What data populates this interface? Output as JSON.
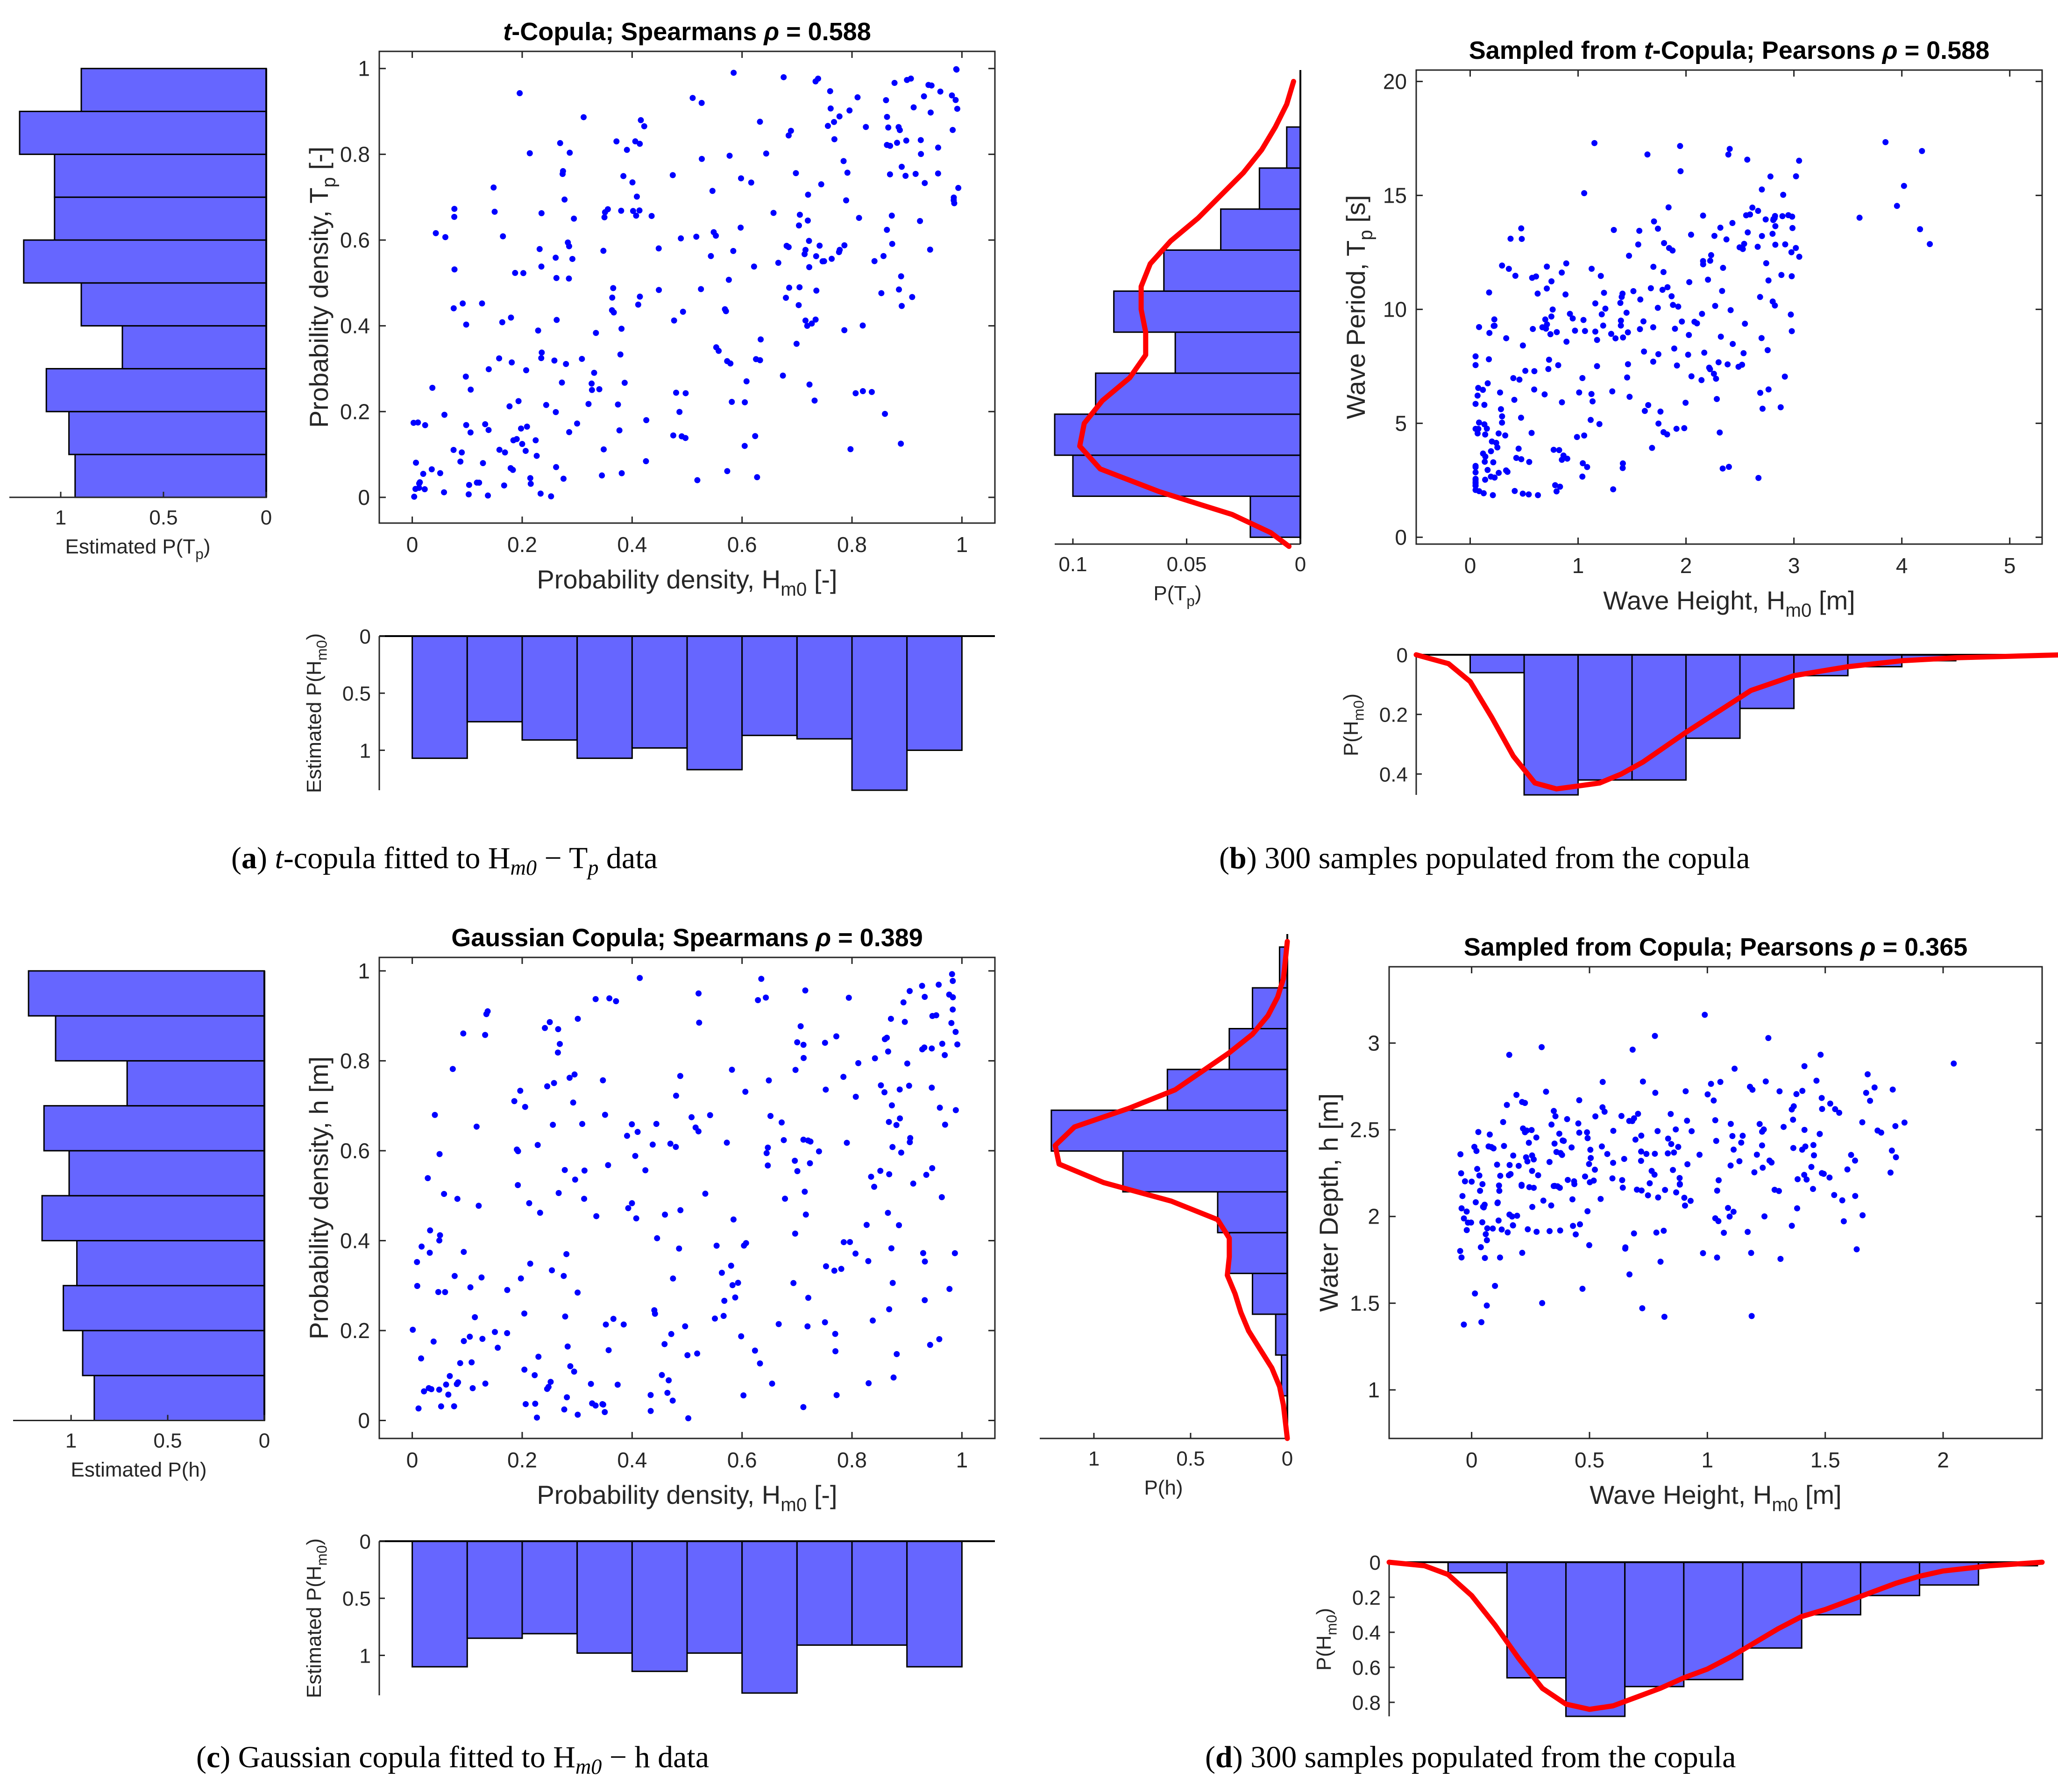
{
  "colors": {
    "bar": "#6666ff",
    "point": "#0000ff",
    "curve": "#ff0000",
    "axis": "#262626"
  },
  "captions": {
    "a": {
      "label": "a",
      "pre": "t",
      "text": "-copula fitted to H",
      "mid": " − T",
      "post": " data",
      "sub1": "m0",
      "sub2": "p"
    },
    "b": {
      "label": "b",
      "text": "300 samples populated from the copula"
    },
    "c": {
      "label": "c",
      "pre": "Gaussian copula fitted to H",
      "sub1": "m0",
      "mid": " − h",
      "post": " data"
    },
    "d": {
      "label": "d",
      "text": "300 samples populated from the copula"
    }
  },
  "chart_data": [
    {
      "id": "a_scatter",
      "type": "scatter",
      "title": "t-Copula; Spearmans ρ = 0.588",
      "xlabel": "Probability density, H_m0 [-]",
      "ylabel": "Probability density, T_p [-]",
      "xlim": [
        -0.06,
        1.06
      ],
      "ylim": [
        -0.06,
        1.04
      ],
      "xticks": [
        0,
        0.2,
        0.4,
        0.6,
        0.8,
        1
      ],
      "yticks": [
        0,
        0.2,
        0.4,
        0.6,
        0.8,
        1
      ],
      "n_points": 300,
      "correlation": 0.588,
      "sample_family": "uniform"
    },
    {
      "id": "a_hist_left",
      "type": "bar",
      "orientation": "horizontal",
      "xlabel": "Estimated P(T_p)",
      "xlim": [
        1.25,
        0
      ],
      "xticks": [
        1,
        0.5,
        0
      ],
      "bin_edges": [
        0,
        0.1,
        0.2,
        0.3,
        0.4,
        0.5,
        0.6,
        0.7,
        0.8,
        0.9,
        1.0
      ],
      "values": [
        0.93,
        0.96,
        1.07,
        0.7,
        0.9,
        1.18,
        1.03,
        1.03,
        1.2,
        0.9
      ]
    },
    {
      "id": "a_hist_bottom",
      "type": "bar",
      "ylabel": "Estimated P(H_m0)",
      "ylim": [
        0,
        1.35
      ],
      "yticks": [
        0,
        0.5,
        1
      ],
      "bin_edges": [
        0,
        0.1,
        0.2,
        0.3,
        0.4,
        0.5,
        0.6,
        0.7,
        0.8,
        0.9,
        1.0
      ],
      "values": [
        1.07,
        0.75,
        0.91,
        1.07,
        0.98,
        1.17,
        0.87,
        0.9,
        1.35,
        1.0
      ]
    },
    {
      "id": "b_scatter",
      "type": "scatter",
      "title": "Sampled from t-Copula; Pearsons ρ = 0.588",
      "xlabel": "Wave Height, H_m0 [m]",
      "ylabel": "Wave Period, T_p [s]",
      "xlim": [
        -0.5,
        5.3
      ],
      "ylim": [
        -0.3,
        20.5
      ],
      "xticks": [
        0,
        1,
        2,
        3,
        4,
        5
      ],
      "yticks": [
        0,
        5,
        10,
        15,
        20
      ],
      "n_points": 300,
      "correlation": 0.588,
      "sample_family": "wave_tp"
    },
    {
      "id": "b_hist_right",
      "type": "bar",
      "orientation": "horizontal",
      "xlabel": "P(T_p)",
      "xlim": [
        0.108,
        0
      ],
      "xticks": [
        0.1,
        0.05,
        0
      ],
      "bin_edges": [
        0,
        1.8,
        3.6,
        5.4,
        7.2,
        9.0,
        10.8,
        12.6,
        14.4,
        16.2,
        18.0,
        19.8
      ],
      "values": [
        0.022,
        0.1,
        0.108,
        0.09,
        0.055,
        0.082,
        0.06,
        0.035,
        0.018,
        0.006,
        0.0
      ],
      "curve": {
        "y": [
          -0.4,
          0.2,
          1,
          2,
          3,
          4,
          5,
          6,
          7,
          8,
          9,
          10,
          11,
          12,
          13,
          14,
          15,
          16,
          17,
          18,
          19,
          20
        ],
        "p": [
          0.005,
          0.013,
          0.03,
          0.062,
          0.088,
          0.097,
          0.095,
          0.087,
          0.075,
          0.068,
          0.068,
          0.07,
          0.07,
          0.066,
          0.057,
          0.045,
          0.035,
          0.025,
          0.017,
          0.011,
          0.006,
          0.003
        ]
      }
    },
    {
      "id": "b_hist_bottom",
      "type": "bar",
      "ylabel": "P(H_m0)",
      "ylim": [
        0,
        0.47
      ],
      "yticks": [
        0,
        0.2,
        0.4
      ],
      "bin_edges": [
        -0.5,
        0.0,
        0.5,
        1.0,
        1.5,
        2.0,
        2.5,
        3.0,
        3.5,
        4.0,
        4.5,
        5.0,
        5.5
      ],
      "values": [
        0.0,
        0.06,
        0.47,
        0.42,
        0.42,
        0.28,
        0.18,
        0.07,
        0.04,
        0.02,
        0.01,
        0.0
      ],
      "curve": {
        "x": [
          -0.5,
          -0.2,
          0.0,
          0.2,
          0.4,
          0.6,
          0.8,
          1.0,
          1.2,
          1.4,
          1.6,
          1.8,
          2.0,
          2.3,
          2.6,
          3.0,
          3.5,
          4.0,
          4.5,
          5.0,
          5.5
        ],
        "p": [
          0.0,
          0.03,
          0.09,
          0.21,
          0.34,
          0.43,
          0.45,
          0.44,
          0.43,
          0.4,
          0.36,
          0.31,
          0.26,
          0.19,
          0.12,
          0.07,
          0.04,
          0.02,
          0.01,
          0.005,
          0.0
        ]
      }
    },
    {
      "id": "c_scatter",
      "type": "scatter",
      "title": "Gaussian Copula; Spearmans ρ = 0.389",
      "xlabel": "Probability density, H_m0 [-]",
      "ylabel": "Probability density, h [m]",
      "xlim": [
        -0.06,
        1.06
      ],
      "ylim": [
        -0.04,
        1.03
      ],
      "xticks": [
        0,
        0.2,
        0.4,
        0.6,
        0.8,
        1
      ],
      "yticks": [
        0,
        0.2,
        0.4,
        0.6,
        0.8,
        1
      ],
      "n_points": 300,
      "correlation": 0.389,
      "sample_family": "uniform"
    },
    {
      "id": "c_hist_left",
      "type": "bar",
      "orientation": "horizontal",
      "xlabel": "Estimated P(h)",
      "xlim": [
        1.3,
        0
      ],
      "xticks": [
        1,
        0.5,
        0
      ],
      "bin_edges": [
        0,
        0.1,
        0.2,
        0.3,
        0.4,
        0.5,
        0.6,
        0.7,
        0.8,
        0.9,
        1.0
      ],
      "values": [
        0.88,
        0.94,
        1.04,
        0.97,
        1.15,
        1.01,
        1.14,
        0.71,
        1.08,
        1.22
      ]
    },
    {
      "id": "c_hist_bottom",
      "type": "bar",
      "ylabel": "Estimated P(H_m0)",
      "ylim": [
        0,
        1.35
      ],
      "yticks": [
        0,
        0.5,
        1
      ],
      "bin_edges": [
        0,
        0.1,
        0.2,
        0.3,
        0.4,
        0.5,
        0.6,
        0.7,
        0.8,
        0.9,
        1.0
      ],
      "values": [
        1.1,
        0.85,
        0.81,
        0.98,
        1.14,
        0.98,
        1.33,
        0.91,
        0.91,
        1.1
      ]
    },
    {
      "id": "d_scatter",
      "type": "scatter",
      "title": "Sampled from Copula; Pearsons ρ = 0.365",
      "xlabel": "Wave Height, H_m0 [m]",
      "ylabel": "Water Depth, h [m]",
      "xlim": [
        -0.35,
        2.42
      ],
      "ylim": [
        0.72,
        3.44
      ],
      "xticks": [
        0,
        0.5,
        1,
        1.5,
        2
      ],
      "yticks": [
        1,
        1.5,
        2,
        2.5,
        3
      ],
      "n_points": 300,
      "correlation": 0.365,
      "sample_family": "depth_h"
    },
    {
      "id": "d_hist_right",
      "type": "bar",
      "orientation": "horizontal",
      "xlabel": "P(h)",
      "xlim": [
        1.28,
        0
      ],
      "xticks": [
        1,
        0.5,
        0
      ],
      "bin_edges": [
        0.95,
        1.17,
        1.39,
        1.61,
        1.83,
        2.05,
        2.27,
        2.49,
        2.71,
        2.93,
        3.15,
        3.37
      ],
      "values": [
        0.03,
        0.06,
        0.18,
        0.3,
        0.36,
        0.85,
        1.22,
        0.62,
        0.3,
        0.18,
        0.04
      ],
      "curve": {
        "y": [
          0.72,
          0.9,
          1.0,
          1.1,
          1.2,
          1.3,
          1.4,
          1.5,
          1.6,
          1.7,
          1.8,
          1.9,
          2.0,
          2.1,
          2.2,
          2.3,
          2.4,
          2.5,
          2.6,
          2.7,
          2.8,
          2.9,
          3.0,
          3.1,
          3.2,
          3.3,
          3.4
        ],
        "p": [
          0.0,
          0.02,
          0.04,
          0.08,
          0.14,
          0.2,
          0.24,
          0.27,
          0.31,
          0.3,
          0.3,
          0.36,
          0.6,
          0.95,
          1.18,
          1.2,
          1.1,
          0.82,
          0.58,
          0.44,
          0.3,
          0.18,
          0.1,
          0.05,
          0.02,
          0.01,
          0.0
        ]
      }
    },
    {
      "id": "d_hist_bottom",
      "type": "bar",
      "ylabel": "P(H_m0)",
      "ylim": [
        0,
        0.88
      ],
      "yticks": [
        0,
        0.2,
        0.4,
        0.6,
        0.8
      ],
      "bin_edges": [
        -0.35,
        -0.1,
        0.15,
        0.4,
        0.65,
        0.9,
        1.15,
        1.4,
        1.65,
        1.9,
        2.15,
        2.4
      ],
      "values": [
        0.0,
        0.06,
        0.66,
        0.88,
        0.71,
        0.67,
        0.49,
        0.3,
        0.19,
        0.13,
        0.02
      ],
      "curve": {
        "x": [
          -0.35,
          -0.2,
          -0.1,
          0.0,
          0.1,
          0.2,
          0.3,
          0.4,
          0.5,
          0.6,
          0.7,
          0.8,
          0.9,
          1.0,
          1.1,
          1.2,
          1.3,
          1.4,
          1.5,
          1.6,
          1.7,
          1.8,
          1.9,
          2.0,
          2.2,
          2.42
        ],
        "p": [
          0.0,
          0.02,
          0.07,
          0.19,
          0.36,
          0.55,
          0.72,
          0.81,
          0.84,
          0.82,
          0.77,
          0.72,
          0.66,
          0.61,
          0.54,
          0.46,
          0.38,
          0.31,
          0.27,
          0.22,
          0.17,
          0.12,
          0.08,
          0.05,
          0.02,
          0.0
        ]
      }
    }
  ]
}
